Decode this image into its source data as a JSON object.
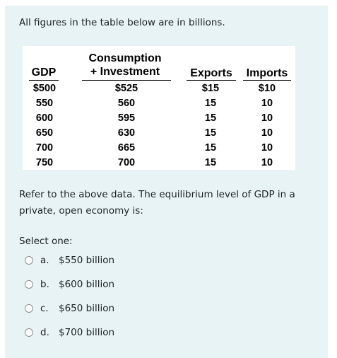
{
  "intro_text": "All figures in the table below are in billions.",
  "table": {
    "headers": {
      "gdp": "GDP",
      "consumption_line1": "Consumption",
      "consumption_line2": "+ Investment",
      "exports": "Exports",
      "imports": "Imports"
    },
    "rows": [
      {
        "gdp": "$500",
        "ci": "$525",
        "exports": "$15",
        "imports": "$10"
      },
      {
        "gdp": "550",
        "ci": "560",
        "exports": "15",
        "imports": "10"
      },
      {
        "gdp": "600",
        "ci": "595",
        "exports": "15",
        "imports": "10"
      },
      {
        "gdp": "650",
        "ci": "630",
        "exports": "15",
        "imports": "10"
      },
      {
        "gdp": "700",
        "ci": "665",
        "exports": "15",
        "imports": "10"
      },
      {
        "gdp": "750",
        "ci": "700",
        "exports": "15",
        "imports": "10"
      }
    ]
  },
  "question_text": "Refer to the above data. The equilibrium level of GDP in a private, open economy is:",
  "select_one_label": "Select one:",
  "options": [
    {
      "letter": "a.",
      "text": "$550 billion"
    },
    {
      "letter": "b.",
      "text": "$600 billion"
    },
    {
      "letter": "c.",
      "text": "$650 billion"
    },
    {
      "letter": "d.",
      "text": "$700 billion"
    }
  ]
}
